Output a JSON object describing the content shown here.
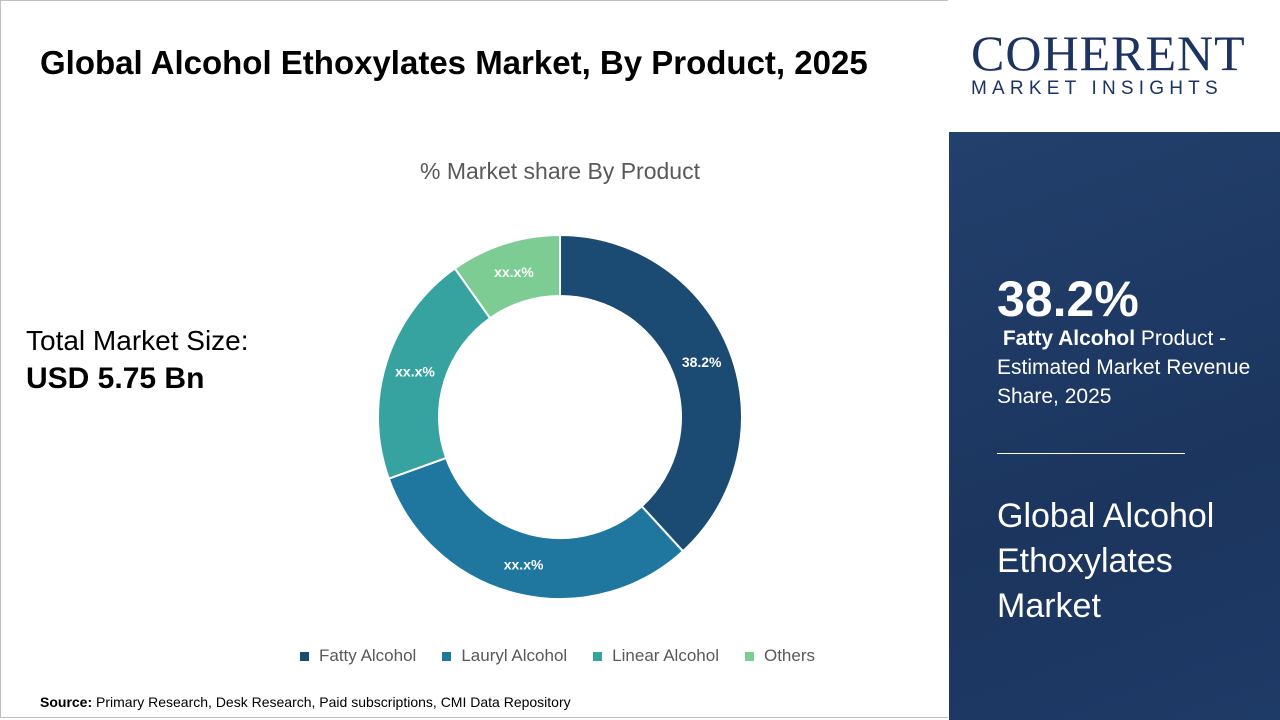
{
  "title": "Global Alcohol Ethoxylates Market, By Product, 2025",
  "total_market": {
    "label": "Total Market Size:",
    "value": "USD 5.75 Bn"
  },
  "source": {
    "label": "Source:",
    "text": "Primary Research, Desk Research, Paid subscriptions, CMI Data Repository"
  },
  "logo": {
    "main": "COHERENT",
    "sub": "MARKET INSIGHTS"
  },
  "panel": {
    "stat": "38.2%",
    "desc_bold": "Fatty Alcohol",
    "desc_rest": " Product - Estimated Market Revenue Share, 2025",
    "market": "Global Alcohol Ethoxylates Market"
  },
  "chart_data": {
    "type": "pie",
    "variant": "donut",
    "title": "% Market share By Product",
    "categories": [
      "Fatty Alcohol",
      "Lauryl Alcohol",
      "Linear Alcohol",
      "Others"
    ],
    "values": [
      38.2,
      31.3,
      20.7,
      9.8
    ],
    "data_labels": [
      "38.2%",
      "xx.x%",
      "xx.x%",
      "xx.x%"
    ],
    "colors": [
      "#1b4b72",
      "#1f77a0",
      "#36a3a0",
      "#7ccc93"
    ],
    "legend_position": "bottom"
  }
}
